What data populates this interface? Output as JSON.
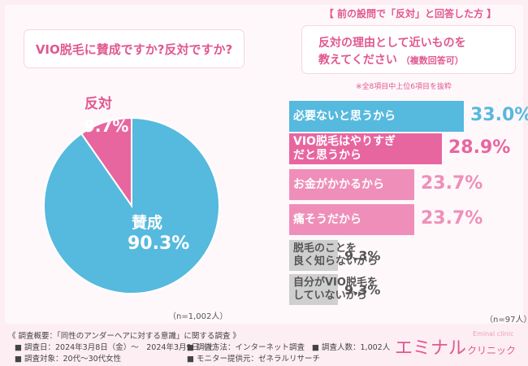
{
  "question": "VIO脱毛に賛成ですか?反対ですか?",
  "left_n": "（n=1,002人）",
  "right_header": "【 前の設問で「反対」と回答した方 】",
  "right_question_line1": "反対の理由として近いものを",
  "right_question_line2": "教えてください",
  "right_question_suffix": "（複数回答可）",
  "right_note": "※全8項目中上位6項目を抜粋",
  "right_n": "（n=97人）",
  "colors": {
    "blue": "#56b9de",
    "pink": "#e766a0",
    "light_pink": "#ef8fb9",
    "gray": "#cfcfcf",
    "accent": "#e0588f"
  },
  "chart_data": [
    {
      "type": "pie",
      "title": "VIO脱毛に賛成ですか?反対ですか?",
      "slices": [
        {
          "label": "賛成",
          "value": 90.3,
          "display": "90.3%",
          "color": "#56b9de"
        },
        {
          "label": "反対",
          "value": 9.7,
          "display": "9.7%",
          "color": "#e766a0"
        }
      ]
    },
    {
      "type": "bar",
      "title": "反対の理由として近いものを教えてください",
      "categories": [
        "必要ないと思うから",
        "VIO脱毛はやりすぎだと思うから",
        "お金がかかるから",
        "痛そうだから",
        "脱毛のことを良く知らないから",
        "自分がVIO脱毛をしていないから"
      ],
      "category_lines": [
        [
          "必要ないと思うから"
        ],
        [
          "VIO脱毛はやりすぎ",
          "だと思うから"
        ],
        [
          "お金がかかるから"
        ],
        [
          "痛そうだから"
        ],
        [
          "脱毛のことを",
          "良く知らないから"
        ],
        [
          "自分がVIO脱毛を",
          "していないから"
        ]
      ],
      "values": [
        33.0,
        28.9,
        23.7,
        23.7,
        9.3,
        9.3
      ],
      "value_labels": [
        "33.0%",
        "28.9%",
        "23.7%",
        "23.7%",
        "9.3%",
        "9.3%"
      ],
      "value_colors": [
        "#56b9de",
        "#e766a0",
        "#ef8fb9",
        "#ef8fb9",
        "#555555",
        "#555555"
      ],
      "bar_colors": [
        "#56b9de",
        "#e766a0",
        "#ef8fb9",
        "#ef8fb9",
        "#cfcfcf",
        "#cfcfcf"
      ]
    }
  ],
  "footer": {
    "summary": "《 調査概要：「同性のアンダーヘアに対する意識」に関する調査 》",
    "date": "調査日：2024年3月8日（金）～　2024年3月9日（土）",
    "method": "調査方法：インターネット調査",
    "people": "調査人数：1,002人",
    "target": "調査対象：20代～30代女性",
    "provider": "モニター提供元：ゼネラルリサーチ"
  },
  "logo": {
    "main": "エミナル",
    "sub": "クリニック",
    "tiny": "Eminal clinic"
  }
}
